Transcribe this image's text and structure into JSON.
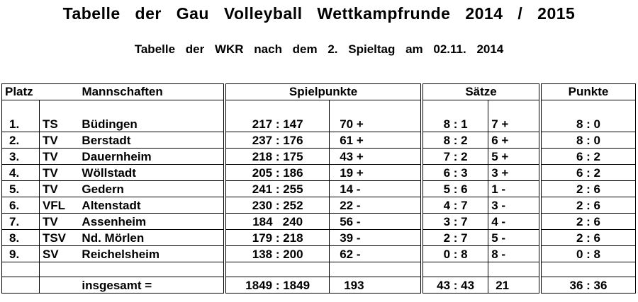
{
  "title": "Tabelle der Gau Volleyball Wettkampfrunde 2014 / 2015",
  "subtitle": "Tabelle der WKR nach dem 2. Spieltag am 02.11. 2014",
  "table": {
    "header": [
      "Platz",
      "Mannschaften",
      "Spielpunkte",
      "Sätze",
      "Punkte"
    ],
    "rows": [
      [
        "1.",
        "TS",
        "Büdingen",
        "217 : 147",
        "70 +",
        "8 : 1",
        "7 +",
        "8 : 0"
      ],
      [
        "2.",
        "TV",
        "Berstadt",
        "237 : 176",
        "61 +",
        "8 : 2",
        "6 +",
        "8 : 0"
      ],
      [
        "3.",
        "TV",
        "Dauernheim",
        "218 : 175",
        "43 +",
        "7 : 2",
        "5 +",
        "6 : 2"
      ],
      [
        "4.",
        "TV",
        "Wöllstadt",
        "205 : 186",
        "19 +",
        "6 : 3",
        "3 +",
        "6 : 2"
      ],
      [
        "5.",
        "TV",
        "Gedern",
        "241 : 255",
        "14 -",
        "5 : 6",
        "1 -",
        "2 : 6"
      ],
      [
        "6.",
        "VFL",
        "Altenstadt",
        "230 : 252",
        "22 -",
        "4 : 7",
        "3 -",
        "2 : 6"
      ],
      [
        "7.",
        "TV",
        "Assenheim",
        "184   240",
        "56 -",
        "3 : 7",
        "4 -",
        "2 : 6"
      ],
      [
        "8.",
        "TSV",
        "Nd. Mörlen",
        "179 : 218",
        "39 -",
        "2 : 7",
        "5 -",
        "2 : 6"
      ],
      [
        "9.",
        "SV",
        "Reichelsheim",
        "138 : 200",
        "62 -",
        "0 : 8",
        "8 -",
        "0 : 8"
      ]
    ],
    "total": [
      "insgesamt =",
      "1849 : 1849",
      "193",
      "43 : 43",
      "21",
      "36 : 36"
    ]
  }
}
